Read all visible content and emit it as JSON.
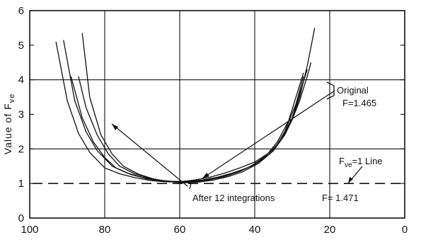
{
  "chart_data": {
    "type": "line",
    "title": "",
    "xlabel": "",
    "ylabel": "Value of F",
    "ylabel_sub": "ve",
    "xlim": [
      100,
      0
    ],
    "ylim": [
      0,
      6
    ],
    "x_ticks": [
      100,
      80,
      60,
      40,
      20,
      0
    ],
    "y_ticks": [
      0,
      1,
      2,
      3,
      4,
      5,
      6
    ],
    "x_tick_labels": [
      "100",
      "80",
      "60",
      "40",
      "20",
      "0"
    ],
    "y_tick_labels": [
      "0",
      "1",
      "2",
      "3",
      "4",
      "5",
      "6"
    ],
    "grid": true,
    "reference_line": {
      "y": 1.0,
      "style": "dashed"
    },
    "annotations": {
      "original_label": "Original",
      "original_F": "F=1.465",
      "integrations_label": "After 12 integrations",
      "integrations_F": "F= 1.471",
      "line_label_main": "F",
      "line_label_sub": "ve",
      "line_label_rest": "=1 Line"
    },
    "series": [
      {
        "x": [
          93,
          90,
          87,
          84,
          80,
          76,
          72,
          68,
          64,
          60,
          56,
          52,
          48,
          44,
          40,
          36,
          33,
          30,
          28,
          26,
          24
        ],
        "y": [
          5.1,
          3.4,
          2.45,
          1.9,
          1.45,
          1.28,
          1.17,
          1.09,
          1.05,
          1.05,
          1.1,
          1.18,
          1.3,
          1.45,
          1.62,
          1.9,
          2.25,
          2.85,
          3.5,
          4.4,
          5.5
        ]
      },
      {
        "x": [
          91,
          88,
          85,
          82,
          78,
          74,
          70,
          66,
          62,
          58,
          54,
          50,
          46,
          42,
          38,
          35,
          32,
          30,
          28,
          26,
          25
        ],
        "y": [
          5.15,
          3.4,
          2.5,
          1.95,
          1.5,
          1.3,
          1.18,
          1.1,
          1.06,
          1.06,
          1.1,
          1.18,
          1.3,
          1.45,
          1.68,
          1.95,
          2.4,
          2.85,
          3.4,
          4.1,
          4.5
        ]
      },
      {
        "x": [
          89,
          86,
          83,
          80,
          77,
          73,
          69,
          65,
          61,
          57,
          53,
          49,
          45,
          41,
          37,
          34,
          31,
          29,
          27
        ],
        "y": [
          4.1,
          2.9,
          2.2,
          1.75,
          1.45,
          1.26,
          1.14,
          1.07,
          1.04,
          1.05,
          1.1,
          1.2,
          1.32,
          1.5,
          1.8,
          2.2,
          2.8,
          3.5,
          4.2
        ]
      },
      {
        "x": [
          87,
          85,
          82,
          79,
          76,
          72,
          68,
          64,
          60,
          56,
          52,
          48,
          44,
          40,
          36,
          33,
          30,
          28,
          26
        ],
        "y": [
          4.1,
          3.2,
          2.4,
          1.85,
          1.5,
          1.28,
          1.15,
          1.07,
          1.03,
          1.05,
          1.11,
          1.2,
          1.35,
          1.55,
          1.85,
          2.25,
          2.9,
          3.6,
          4.3
        ]
      },
      {
        "x": [
          86,
          84,
          81,
          78,
          75,
          71,
          67,
          63,
          59,
          55,
          51,
          47,
          43,
          39,
          35,
          32,
          29,
          27
        ],
        "y": [
          5.35,
          3.5,
          2.4,
          1.85,
          1.5,
          1.27,
          1.13,
          1.05,
          1.02,
          1.04,
          1.1,
          1.2,
          1.35,
          1.58,
          1.95,
          2.5,
          3.3,
          4.1
        ]
      }
    ]
  }
}
